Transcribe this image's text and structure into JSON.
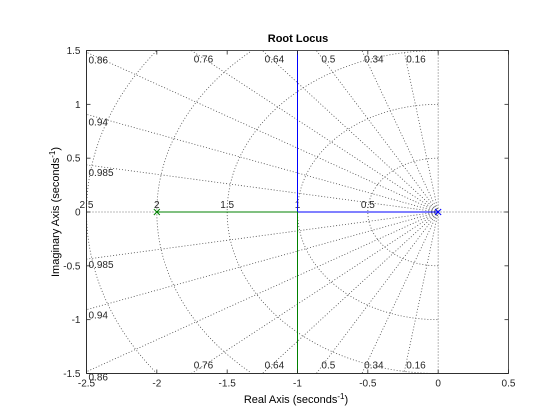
{
  "chart_data": {
    "type": "line",
    "title": "Root Locus",
    "xlabel": {
      "main": "Real Axis (seconds",
      "sup": "-1",
      "tail": ")"
    },
    "ylabel": {
      "main": "Imaginary Axis (seconds",
      "sup": "-1",
      "tail": ")"
    },
    "xlim": [
      -2.5,
      0.5
    ],
    "ylim": [
      -1.5,
      1.5
    ],
    "xticks": [
      {
        "value": -2.5,
        "label": "-2.5"
      },
      {
        "value": -2,
        "label": "-2"
      },
      {
        "value": -1.5,
        "label": "-1.5"
      },
      {
        "value": -1,
        "label": "-1"
      },
      {
        "value": -0.5,
        "label": "-0.5"
      },
      {
        "value": 0,
        "label": "0"
      },
      {
        "value": 0.5,
        "label": "0.5"
      }
    ],
    "yticks": [
      {
        "value": -1.5,
        "label": "-1.5"
      },
      {
        "value": -1,
        "label": "-1"
      },
      {
        "value": -0.5,
        "label": "-0.5"
      },
      {
        "value": 0,
        "label": "0"
      },
      {
        "value": 0.5,
        "label": "0.5"
      },
      {
        "value": 1,
        "label": "1"
      },
      {
        "value": 1.5,
        "label": "1.5"
      }
    ],
    "grid": {
      "damping_ratios": [
        0.16,
        0.34,
        0.5,
        0.64,
        0.76,
        0.86,
        0.94,
        0.985
      ],
      "damping_labels": [
        "0.16",
        "0.34",
        "0.5",
        "0.64",
        "0.76",
        "0.86",
        "0.94",
        "0.985"
      ],
      "natural_frequencies": [
        0.5,
        1,
        1.5,
        2,
        2.5
      ],
      "frequency_labels": [
        "0.5",
        "1",
        "1.5",
        "2",
        "2.5"
      ]
    },
    "series": [
      {
        "color": "#0000ff",
        "x": [
          0,
          -1,
          -1,
          -1
        ],
        "y": [
          0,
          0,
          1.5,
          1.5
        ]
      },
      {
        "color": "#008000",
        "x": [
          -2,
          -1,
          -1,
          -1
        ],
        "y": [
          0,
          0,
          -1.5,
          -1.5
        ]
      }
    ],
    "poles": [
      {
        "x": -2,
        "y": 0,
        "color": "#008000"
      },
      {
        "x": 0,
        "y": 0,
        "color": "#0000ff"
      }
    ]
  }
}
